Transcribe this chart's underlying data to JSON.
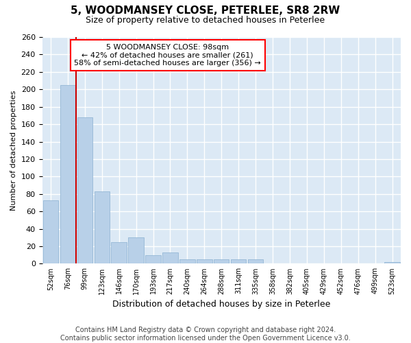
{
  "title_line1": "5, WOODMANSEY CLOSE, PETERLEE, SR8 2RW",
  "title_line2": "Size of property relative to detached houses in Peterlee",
  "xlabel": "Distribution of detached houses by size in Peterlee",
  "ylabel": "Number of detached properties",
  "footer_line1": "Contains HM Land Registry data © Crown copyright and database right 2024.",
  "footer_line2": "Contains public sector information licensed under the Open Government Licence v3.0.",
  "annotation_line1": "5 WOODMANSEY CLOSE: 98sqm",
  "annotation_line2": "← 42% of detached houses are smaller (261)",
  "annotation_line3": "58% of semi-detached houses are larger (356) →",
  "categories": [
    "52sqm",
    "76sqm",
    "99sqm",
    "123sqm",
    "146sqm",
    "170sqm",
    "193sqm",
    "217sqm",
    "240sqm",
    "264sqm",
    "288sqm",
    "311sqm",
    "335sqm",
    "358sqm",
    "382sqm",
    "405sqm",
    "429sqm",
    "452sqm",
    "476sqm",
    "499sqm",
    "523sqm"
  ],
  "values": [
    73,
    205,
    168,
    83,
    25,
    30,
    10,
    13,
    5,
    5,
    5,
    5,
    5,
    0,
    0,
    0,
    0,
    0,
    0,
    0,
    2
  ],
  "bar_color": "#b8d0e8",
  "bar_edge_color": "#8ab0d0",
  "property_line_color": "#cc0000",
  "background_color": "#dce9f5",
  "grid_color": "#ffffff",
  "ylim": [
    0,
    260
  ],
  "yticks": [
    0,
    20,
    40,
    60,
    80,
    100,
    120,
    140,
    160,
    180,
    200,
    220,
    240,
    260
  ],
  "title1_fontsize": 11,
  "title2_fontsize": 9,
  "ylabel_fontsize": 8,
  "xlabel_fontsize": 9,
  "tick_fontsize": 8,
  "xtick_fontsize": 7,
  "ann_fontsize": 8,
  "footer_fontsize": 7
}
